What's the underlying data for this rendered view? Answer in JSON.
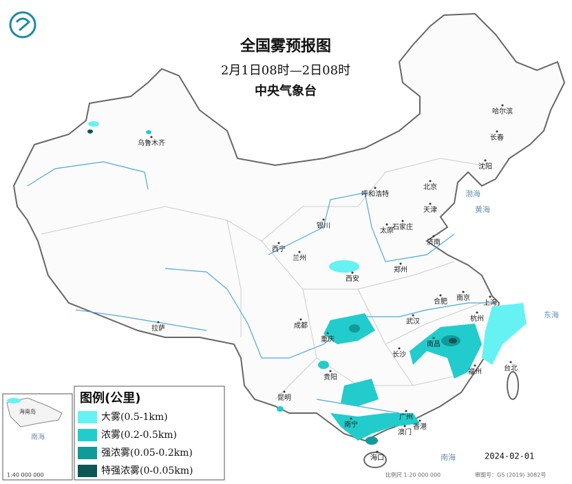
{
  "header": {
    "title": "全国雾预报图",
    "subtitle": "2月1日08时—2日08时",
    "issuer": "中央气象台"
  },
  "legend": {
    "title": "图例(公里)",
    "items": [
      {
        "label": "大雾(0.5-1km)",
        "color": "#66f2f2"
      },
      {
        "label": "浓雾(0.2-0.5km)",
        "color": "#22cccc"
      },
      {
        "label": "强浓雾(0.05-0.2km)",
        "color": "#129a9a"
      },
      {
        "label": "特强浓雾(0-0.05km)",
        "color": "#0b5753"
      }
    ]
  },
  "cities": [
    "乌鲁木齐",
    "哈尔滨",
    "长春",
    "沈阳",
    "呼和浩特",
    "北京",
    "天津",
    "银川",
    "石家庄",
    "太原",
    "济南",
    "西宁",
    "兰州",
    "郑州",
    "西安",
    "合肥",
    "南京",
    "上海",
    "成都",
    "武汉",
    "杭州",
    "拉萨",
    "重庆",
    "长沙",
    "南昌",
    "福州",
    "台北",
    "贵阳",
    "昆明",
    "南宁",
    "广州",
    "香港",
    "澳门",
    "海口"
  ],
  "seas": [
    "东海",
    "南海",
    "渤海",
    "黄海"
  ],
  "inset": {
    "sea": "南海",
    "island": "海南岛",
    "scale": "1:40 000 000"
  },
  "footer": {
    "date": "2024-02-01",
    "scale": "比例尺 1:20 000 000",
    "approval": "审图号：GS (2019) 3082号"
  }
}
